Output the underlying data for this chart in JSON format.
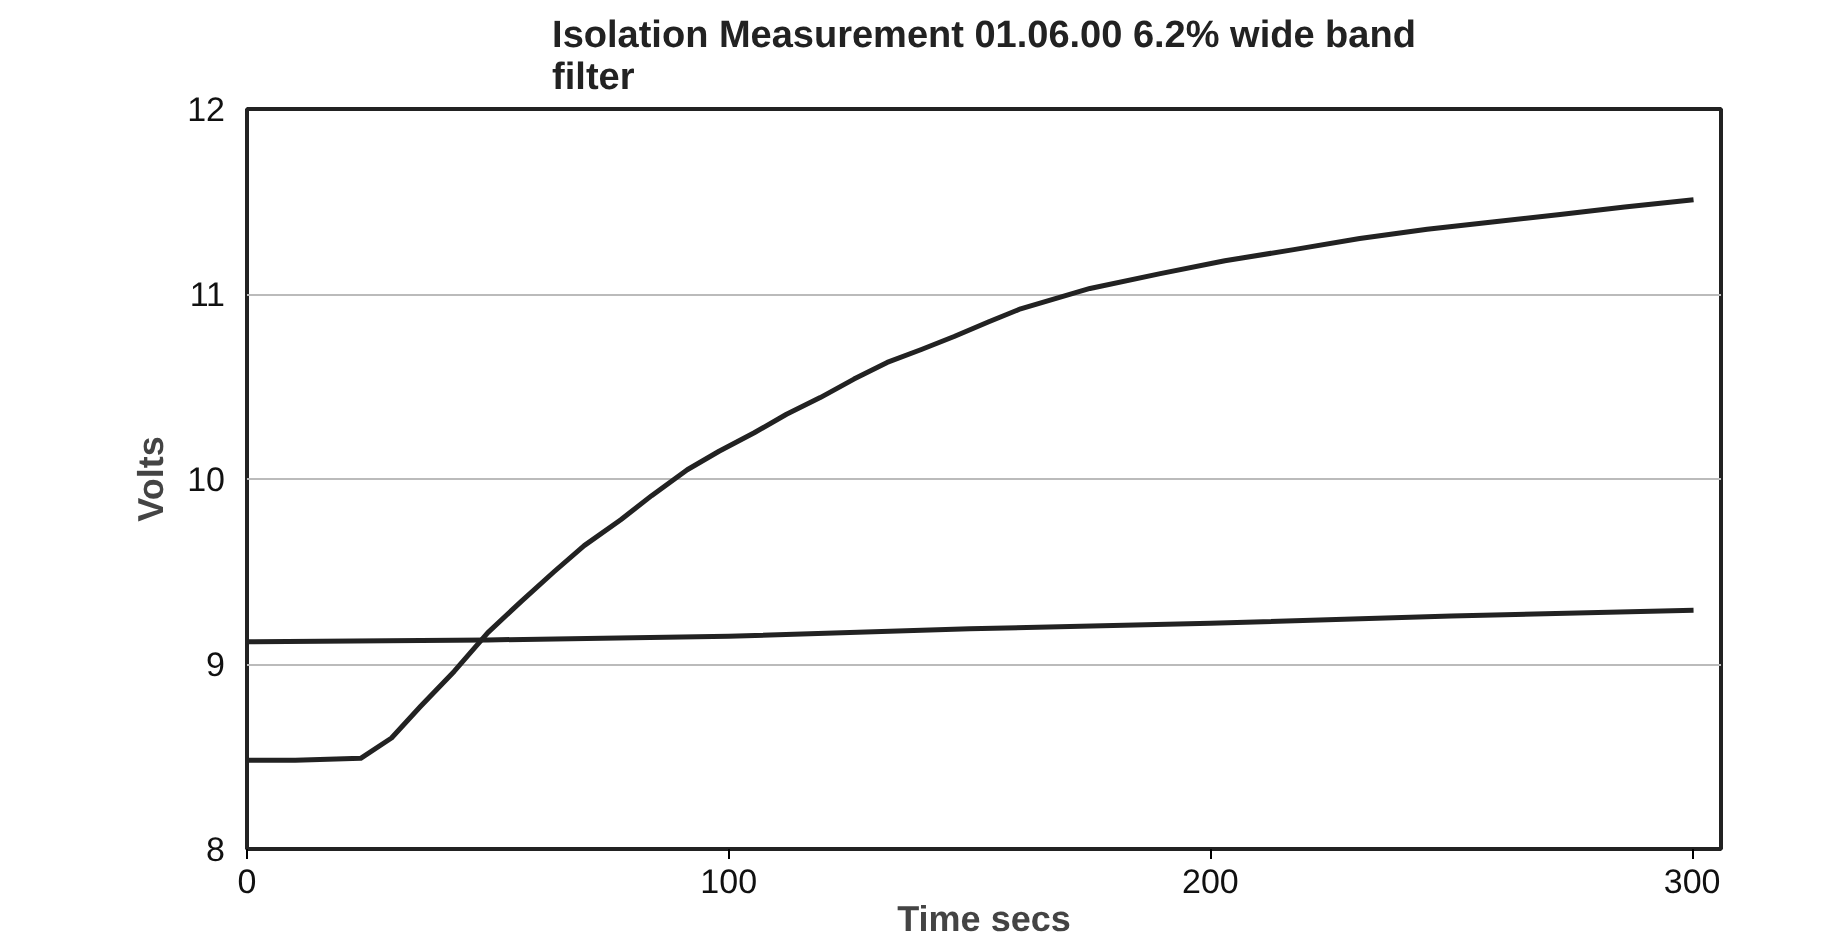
{
  "chart_data": {
    "type": "line",
    "title": "Isolation Measurement 01.06.00 6.2% wide band filter",
    "xlabel": "Time secs",
    "ylabel": "Volts",
    "xlim": [
      0,
      306
    ],
    "ylim": [
      8,
      12
    ],
    "xticks": [
      0,
      100,
      200,
      300
    ],
    "yticks": [
      8,
      9,
      10,
      11,
      12
    ],
    "grid": "y",
    "marker": "none",
    "line_style": "solid",
    "series": [
      {
        "color": "#222222",
        "x": [
          0,
          10,
          23.6,
          30,
          36,
          43,
          50,
          57,
          63.8,
          70,
          77.6,
          84,
          91.4,
          98,
          105.3,
          112,
          119,
          126,
          132.9,
          140,
          146.8,
          154,
          160.6,
          175,
          189.6,
          203,
          217.3,
          231,
          245,
          259,
          272.6,
          286,
          300.3
        ],
        "values": [
          8.48,
          8.48,
          8.49,
          8.6,
          8.77,
          8.96,
          9.17,
          9.34,
          9.5,
          9.64,
          9.78,
          9.91,
          10.05,
          10.15,
          10.25,
          10.35,
          10.44,
          10.54,
          10.63,
          10.7,
          10.77,
          10.85,
          10.92,
          11.03,
          11.11,
          11.18,
          11.24,
          11.3,
          11.35,
          11.39,
          11.43,
          11.47,
          11.51
        ]
      },
      {
        "color": "#222222",
        "x": [
          0,
          50,
          100,
          150,
          200,
          250,
          300.3
        ],
        "values": [
          9.12,
          9.13,
          9.15,
          9.19,
          9.22,
          9.26,
          9.29
        ]
      }
    ]
  }
}
